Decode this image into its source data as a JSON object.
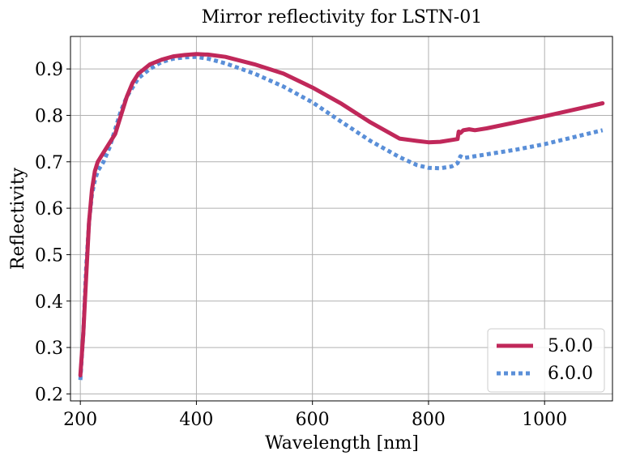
{
  "chart_data": {
    "type": "line",
    "title": "Mirror reflectivity for LSTN-01",
    "xlabel": "Wavelength [nm]",
    "ylabel": "Reflectivity",
    "xlim": [
      183,
      1117
    ],
    "ylim": [
      0.185,
      0.97
    ],
    "xticks": [
      200,
      400,
      600,
      800,
      1000
    ],
    "yticks": [
      0.2,
      0.3,
      0.4,
      0.5,
      0.6,
      0.7,
      0.8,
      0.9
    ],
    "xtick_labels": [
      "200",
      "400",
      "600",
      "800",
      "1000"
    ],
    "ytick_labels": [
      "0.2",
      "0.3",
      "0.4",
      "0.5",
      "0.6",
      "0.7",
      "0.8",
      "0.9"
    ],
    "grid": true,
    "legend_position": "bottom-right",
    "series": [
      {
        "name": "5.0.0",
        "color": "#c0285a",
        "style": "solid",
        "x": [
          200,
          205,
          210,
          215,
          220,
          225,
          230,
          240,
          250,
          260,
          270,
          280,
          290,
          300,
          320,
          340,
          360,
          380,
          400,
          420,
          450,
          500,
          550,
          600,
          650,
          700,
          750,
          780,
          800,
          820,
          850,
          852,
          855,
          860,
          870,
          880,
          900,
          950,
          1000,
          1050,
          1100
        ],
        "y": [
          0.24,
          0.33,
          0.45,
          0.57,
          0.64,
          0.68,
          0.7,
          0.72,
          0.74,
          0.76,
          0.8,
          0.84,
          0.87,
          0.89,
          0.91,
          0.92,
          0.927,
          0.93,
          0.932,
          0.931,
          0.926,
          0.91,
          0.89,
          0.86,
          0.825,
          0.785,
          0.75,
          0.745,
          0.742,
          0.743,
          0.749,
          0.765,
          0.762,
          0.768,
          0.77,
          0.768,
          0.772,
          0.785,
          0.798,
          0.812,
          0.826
        ]
      },
      {
        "name": "6.0.0",
        "color": "#5a8fd8",
        "style": "dotted",
        "x": [
          200,
          205,
          210,
          215,
          220,
          225,
          230,
          240,
          250,
          260,
          270,
          280,
          290,
          300,
          320,
          340,
          360,
          380,
          400,
          420,
          450,
          500,
          550,
          600,
          650,
          700,
          750,
          780,
          800,
          820,
          840,
          850,
          855,
          860,
          880,
          900,
          950,
          1000,
          1050,
          1100
        ],
        "y": [
          0.23,
          0.33,
          0.47,
          0.57,
          0.63,
          0.66,
          0.68,
          0.7,
          0.73,
          0.77,
          0.81,
          0.84,
          0.86,
          0.88,
          0.9,
          0.915,
          0.922,
          0.925,
          0.926,
          0.922,
          0.912,
          0.89,
          0.862,
          0.828,
          0.786,
          0.745,
          0.71,
          0.693,
          0.687,
          0.686,
          0.69,
          0.697,
          0.712,
          0.708,
          0.712,
          0.716,
          0.726,
          0.738,
          0.753,
          0.768
        ]
      }
    ]
  }
}
